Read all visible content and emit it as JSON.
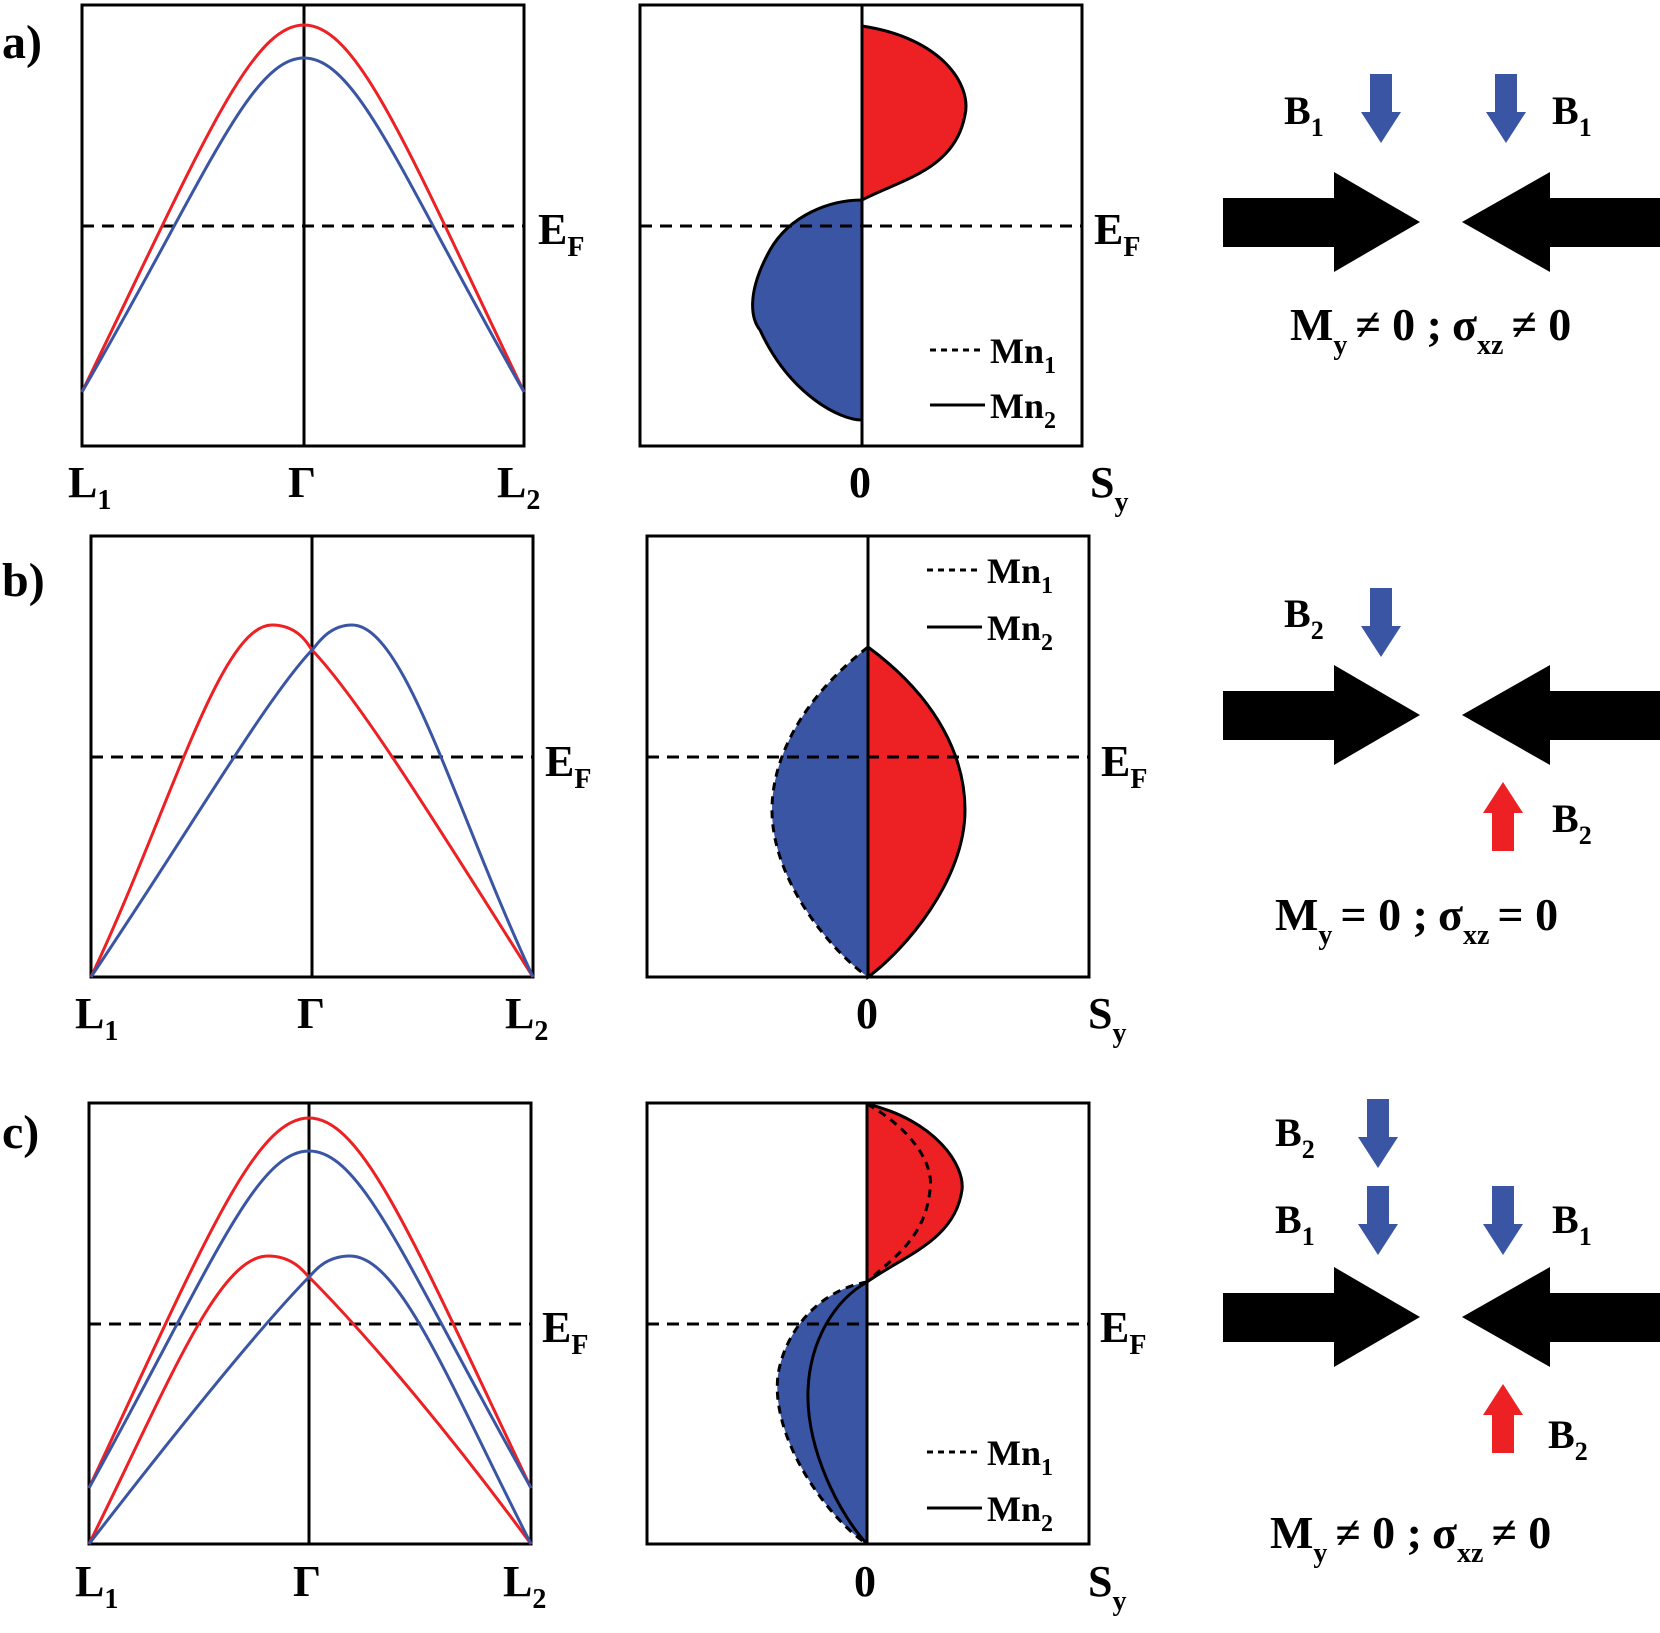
{
  "colors": {
    "red": "#ED2024",
    "blue": "#3B55A5",
    "black": "#000000"
  },
  "panels": [
    {
      "tag": "a)",
      "band": {
        "k_left": "L",
        "k_left_sub": "1",
        "k_center": "Γ",
        "k_right": "L",
        "k_right_sub": "2",
        "fermi": "E",
        "fermi_sub": "F"
      },
      "spin": {
        "zero": "0",
        "axis": "S",
        "axis_sub": "y",
        "fermi": "E",
        "fermi_sub": "F",
        "legend": [
          {
            "line": "dashed",
            "label": "Mn",
            "sub": "1"
          },
          {
            "line": "solid",
            "label": "Mn",
            "sub": "2"
          }
        ]
      },
      "fields": [
        {
          "label": "B",
          "sub": "1",
          "dir": "down",
          "color": "blue"
        },
        {
          "label": "B",
          "sub": "1",
          "dir": "down",
          "color": "blue"
        }
      ],
      "result": {
        "m": "M",
        "m_sub": "y",
        "m_rel": "≠ 0 ;",
        "s": "σ",
        "s_sub": "xz",
        "s_rel": "≠ 0"
      }
    },
    {
      "tag": "b)",
      "band": {
        "k_left": "L",
        "k_left_sub": "1",
        "k_center": "Γ",
        "k_right": "L",
        "k_right_sub": "2",
        "fermi": "E",
        "fermi_sub": "F"
      },
      "spin": {
        "zero": "0",
        "axis": "S",
        "axis_sub": "y",
        "fermi": "E",
        "fermi_sub": "F",
        "legend": [
          {
            "line": "dashed",
            "label": "Mn",
            "sub": "1"
          },
          {
            "line": "solid",
            "label": "Mn",
            "sub": "2"
          }
        ]
      },
      "fields": [
        {
          "label": "B",
          "sub": "2",
          "dir": "down",
          "color": "blue"
        },
        {
          "label": "B",
          "sub": "2",
          "dir": "up",
          "color": "red"
        }
      ],
      "result": {
        "m": "M",
        "m_sub": "y",
        "m_rel": "= 0 ;",
        "s": "σ",
        "s_sub": "xz",
        "s_rel": "= 0"
      }
    },
    {
      "tag": "c)",
      "band": {
        "k_left": "L",
        "k_left_sub": "1",
        "k_center": "Γ",
        "k_right": "L",
        "k_right_sub": "2",
        "fermi": "E",
        "fermi_sub": "F"
      },
      "spin": {
        "zero": "0",
        "axis": "S",
        "axis_sub": "y",
        "fermi": "E",
        "fermi_sub": "F",
        "legend": [
          {
            "line": "dashed",
            "label": "Mn",
            "sub": "1"
          },
          {
            "line": "solid",
            "label": "Mn",
            "sub": "2"
          }
        ]
      },
      "fields": [
        {
          "label": "B",
          "sub": "2",
          "dir": "down",
          "color": "blue"
        },
        {
          "label": "B",
          "sub": "1",
          "dir": "down",
          "color": "blue"
        },
        {
          "label": "B",
          "sub": "1",
          "dir": "down",
          "color": "blue"
        },
        {
          "label": "B",
          "sub": "2",
          "dir": "up",
          "color": "red"
        }
      ],
      "result": {
        "m": "M",
        "m_sub": "y",
        "m_rel": "≠ 0 ;",
        "s": "σ",
        "s_sub": "xz",
        "s_rel": "≠ 0"
      }
    }
  ]
}
